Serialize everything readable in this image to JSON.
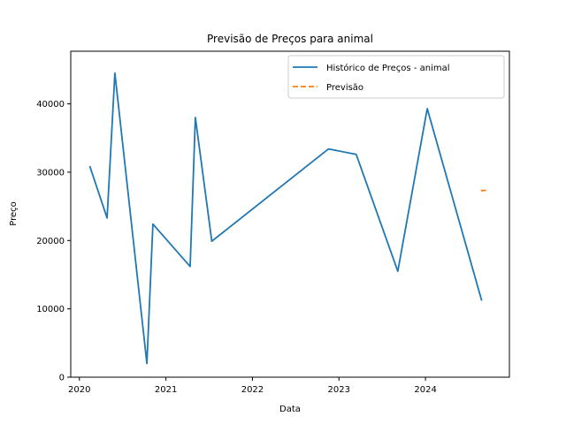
{
  "chart_data": {
    "type": "line",
    "title": "Previsão de Preços para animal",
    "xlabel": "Data",
    "ylabel": "Preço",
    "xlim": [
      2019.9,
      2024.97
    ],
    "ylim": [
      0,
      47700
    ],
    "x_ticks": [
      2020,
      2021,
      2022,
      2023,
      2024
    ],
    "y_ticks": [
      0,
      10000,
      20000,
      30000,
      40000
    ],
    "x_tick_labels": [
      "2020",
      "2021",
      "2022",
      "2023",
      "2024"
    ],
    "y_tick_labels": [
      "0",
      "10000",
      "20000",
      "30000",
      "40000"
    ],
    "grid": false,
    "legend_position": "top-right",
    "series": [
      {
        "name": "Histórico de Preços - animal",
        "color": "#1f77b4",
        "style": "solid",
        "points": [
          [
            2020.12,
            30900
          ],
          [
            2020.32,
            23300
          ],
          [
            2020.41,
            44500
          ],
          [
            2020.78,
            2000
          ],
          [
            2020.85,
            22400
          ],
          [
            2021.28,
            16200
          ],
          [
            2021.34,
            38000
          ],
          [
            2021.53,
            19900
          ],
          [
            2022.88,
            33400
          ],
          [
            2023.2,
            32600
          ],
          [
            2023.68,
            15500
          ],
          [
            2024.02,
            39300
          ],
          [
            2024.65,
            11200
          ]
        ]
      },
      {
        "name": "Previsão",
        "color": "#ff7f0e",
        "style": "dashed",
        "points": [
          [
            2024.64,
            27300
          ],
          [
            2024.72,
            27350
          ]
        ]
      }
    ]
  }
}
